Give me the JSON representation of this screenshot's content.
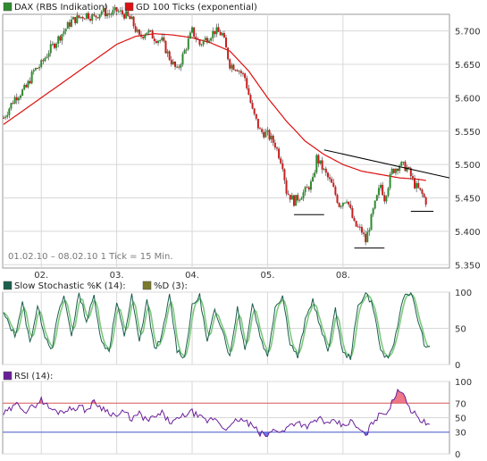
{
  "colors": {
    "candle_up": "#2e8b2e",
    "candle_down": "#c81e1e",
    "ma": "#dd1111",
    "trendline": "#000000",
    "stoch_k": "#1a5e4e",
    "stoch_d": "#7ec97e",
    "rsi": "#6a1f9a",
    "rsi_over": "#ee7788",
    "rsi_under": "#6677ee",
    "line70": "#e06060",
    "line30": "#5060d0",
    "grid": "#d8d8d8",
    "frame": "#9a9a9a",
    "panel_bg": "#ffffff"
  },
  "chart_data": [
    {
      "type": "candlestick",
      "legend": [
        {
          "label": "DAX (RBS Indikation)",
          "color": "#2e8b2e"
        },
        {
          "label": "GD 100 Ticks (exponential)",
          "color": "#dd1111"
        }
      ],
      "caption": "01.02.10 – 08.02.10   1 Tick = 15 Min.",
      "x_ticks": [
        "02.",
        "03.",
        "04.",
        "05.",
        "08."
      ],
      "x_tick_positions": [
        10,
        30,
        50,
        70,
        90
      ],
      "x_range": [
        0,
        118
      ],
      "y_ticks": [
        "5.700",
        "5.650",
        "5.600",
        "5.550",
        "5.500",
        "5.450",
        "5.400",
        "5.350"
      ],
      "y_tick_values": [
        5700,
        5650,
        5600,
        5550,
        5500,
        5450,
        5400,
        5350
      ],
      "ylim": [
        5345,
        5725
      ],
      "close_anchors": [
        [
          0,
          5570
        ],
        [
          3,
          5600
        ],
        [
          6,
          5615
        ],
        [
          8,
          5640
        ],
        [
          10,
          5650
        ],
        [
          12,
          5670
        ],
        [
          14,
          5685
        ],
        [
          16,
          5700
        ],
        [
          18,
          5715
        ],
        [
          20,
          5720
        ],
        [
          22,
          5725
        ],
        [
          24,
          5720
        ],
        [
          26,
          5730
        ],
        [
          28,
          5725
        ],
        [
          30,
          5730
        ],
        [
          32,
          5725
        ],
        [
          34,
          5715
        ],
        [
          36,
          5690
        ],
        [
          38,
          5700
        ],
        [
          40,
          5690
        ],
        [
          42,
          5685
        ],
        [
          44,
          5660
        ],
        [
          46,
          5640
        ],
        [
          48,
          5670
        ],
        [
          50,
          5700
        ],
        [
          52,
          5680
        ],
        [
          54,
          5690
        ],
        [
          56,
          5700
        ],
        [
          58,
          5695
        ],
        [
          60,
          5650
        ],
        [
          62,
          5645
        ],
        [
          64,
          5630
        ],
        [
          66,
          5580
        ],
        [
          68,
          5550
        ],
        [
          70,
          5545
        ],
        [
          72,
          5530
        ],
        [
          74,
          5500
        ],
        [
          75,
          5460
        ],
        [
          77,
          5445
        ],
        [
          80,
          5460
        ],
        [
          82,
          5475
        ],
        [
          83,
          5510
        ],
        [
          85,
          5490
        ],
        [
          87,
          5470
        ],
        [
          89,
          5440
        ],
        [
          91,
          5450
        ],
        [
          93,
          5410
        ],
        [
          95,
          5400
        ],
        [
          96,
          5385
        ],
        [
          98,
          5430
        ],
        [
          100,
          5470
        ],
        [
          101,
          5450
        ],
        [
          103,
          5490
        ],
        [
          105,
          5500
        ],
        [
          107,
          5495
        ],
        [
          109,
          5470
        ],
        [
          111,
          5455
        ],
        [
          112,
          5445
        ]
      ],
      "ma_anchors": [
        [
          0,
          5560
        ],
        [
          10,
          5600
        ],
        [
          20,
          5640
        ],
        [
          30,
          5680
        ],
        [
          35,
          5692
        ],
        [
          40,
          5696
        ],
        [
          45,
          5694
        ],
        [
          50,
          5690
        ],
        [
          55,
          5682
        ],
        [
          60,
          5670
        ],
        [
          65,
          5640
        ],
        [
          70,
          5600
        ],
        [
          75,
          5565
        ],
        [
          80,
          5535
        ],
        [
          85,
          5515
        ],
        [
          90,
          5500
        ],
        [
          95,
          5490
        ],
        [
          100,
          5485
        ],
        [
          105,
          5480
        ],
        [
          110,
          5478
        ],
        [
          112,
          5476
        ]
      ],
      "trendline": {
        "x": [
          85,
          122
        ],
        "y": [
          5522,
          5480
        ]
      },
      "support_lines": [
        {
          "x": [
            77,
            85
          ],
          "y": 5425
        },
        {
          "x": [
            93,
            101
          ],
          "y": 5375
        },
        {
          "x": [
            108,
            114
          ],
          "y": 5430
        }
      ]
    },
    {
      "type": "line",
      "legend": [
        {
          "label": "Slow Stochastic %K (14):",
          "color": "#1a5e4e"
        },
        {
          "label": "%D (3):",
          "color": "#7a7a2a"
        }
      ],
      "y_ticks": [
        "100",
        "50",
        "0"
      ],
      "y_tick_values": [
        100,
        50,
        0
      ],
      "ylim": [
        0,
        100
      ],
      "x_range": [
        0,
        118
      ],
      "k_anchors": [
        [
          0,
          70
        ],
        [
          3,
          40
        ],
        [
          5,
          85
        ],
        [
          7,
          30
        ],
        [
          9,
          80
        ],
        [
          11,
          40
        ],
        [
          13,
          20
        ],
        [
          14,
          60
        ],
        [
          16,
          95
        ],
        [
          18,
          40
        ],
        [
          20,
          100
        ],
        [
          22,
          60
        ],
        [
          24,
          95
        ],
        [
          26,
          30
        ],
        [
          28,
          20
        ],
        [
          30,
          85
        ],
        [
          32,
          40
        ],
        [
          34,
          95
        ],
        [
          36,
          30
        ],
        [
          38,
          90
        ],
        [
          40,
          20
        ],
        [
          42,
          40
        ],
        [
          44,
          95
        ],
        [
          46,
          20
        ],
        [
          48,
          10
        ],
        [
          50,
          80
        ],
        [
          52,
          95
        ],
        [
          54,
          30
        ],
        [
          56,
          75
        ],
        [
          58,
          50
        ],
        [
          60,
          10
        ],
        [
          62,
          80
        ],
        [
          64,
          20
        ],
        [
          66,
          85
        ],
        [
          68,
          40
        ],
        [
          70,
          10
        ],
        [
          72,
          80
        ],
        [
          74,
          95
        ],
        [
          76,
          30
        ],
        [
          78,
          10
        ],
        [
          80,
          60
        ],
        [
          82,
          90
        ],
        [
          84,
          50
        ],
        [
          86,
          20
        ],
        [
          88,
          75
        ],
        [
          90,
          15
        ],
        [
          92,
          10
        ],
        [
          94,
          80
        ],
        [
          96,
          100
        ],
        [
          98,
          80
        ],
        [
          100,
          20
        ],
        [
          102,
          5
        ],
        [
          104,
          40
        ],
        [
          106,
          95
        ],
        [
          108,
          100
        ],
        [
          110,
          60
        ],
        [
          112,
          20
        ],
        [
          113,
          25
        ]
      ]
    },
    {
      "type": "line",
      "legend": [
        {
          "label": "RSI (14):",
          "color": "#6a1f9a"
        }
      ],
      "y_ticks": [
        "100",
        "70",
        "50",
        "30",
        "0"
      ],
      "y_tick_values": [
        100,
        70,
        50,
        30,
        0
      ],
      "ylim": [
        0,
        100
      ],
      "x_range": [
        0,
        118
      ],
      "upper_level": 70,
      "lower_level": 30,
      "rsi_anchors": [
        [
          0,
          55
        ],
        [
          2,
          62
        ],
        [
          4,
          70
        ],
        [
          6,
          58
        ],
        [
          8,
          66
        ],
        [
          10,
          75
        ],
        [
          12,
          64
        ],
        [
          14,
          58
        ],
        [
          16,
          60
        ],
        [
          18,
          62
        ],
        [
          20,
          66
        ],
        [
          22,
          60
        ],
        [
          24,
          72
        ],
        [
          26,
          64
        ],
        [
          28,
          58
        ],
        [
          30,
          52
        ],
        [
          32,
          58
        ],
        [
          34,
          48
        ],
        [
          36,
          55
        ],
        [
          38,
          46
        ],
        [
          40,
          50
        ],
        [
          42,
          56
        ],
        [
          44,
          44
        ],
        [
          46,
          46
        ],
        [
          48,
          54
        ],
        [
          50,
          58
        ],
        [
          52,
          50
        ],
        [
          54,
          45
        ],
        [
          56,
          50
        ],
        [
          58,
          38
        ],
        [
          60,
          35
        ],
        [
          62,
          48
        ],
        [
          64,
          45
        ],
        [
          66,
          38
        ],
        [
          68,
          28
        ],
        [
          70,
          25
        ],
        [
          72,
          35
        ],
        [
          74,
          30
        ],
        [
          76,
          40
        ],
        [
          78,
          45
        ],
        [
          80,
          38
        ],
        [
          82,
          42
        ],
        [
          84,
          50
        ],
        [
          86,
          40
        ],
        [
          88,
          45
        ],
        [
          90,
          38
        ],
        [
          92,
          45
        ],
        [
          94,
          35
        ],
        [
          96,
          25
        ],
        [
          98,
          45
        ],
        [
          100,
          55
        ],
        [
          102,
          60
        ],
        [
          104,
          80
        ],
        [
          105,
          90
        ],
        [
          106,
          85
        ],
        [
          108,
          60
        ],
        [
          110,
          50
        ],
        [
          112,
          42
        ],
        [
          113,
          45
        ]
      ]
    }
  ]
}
